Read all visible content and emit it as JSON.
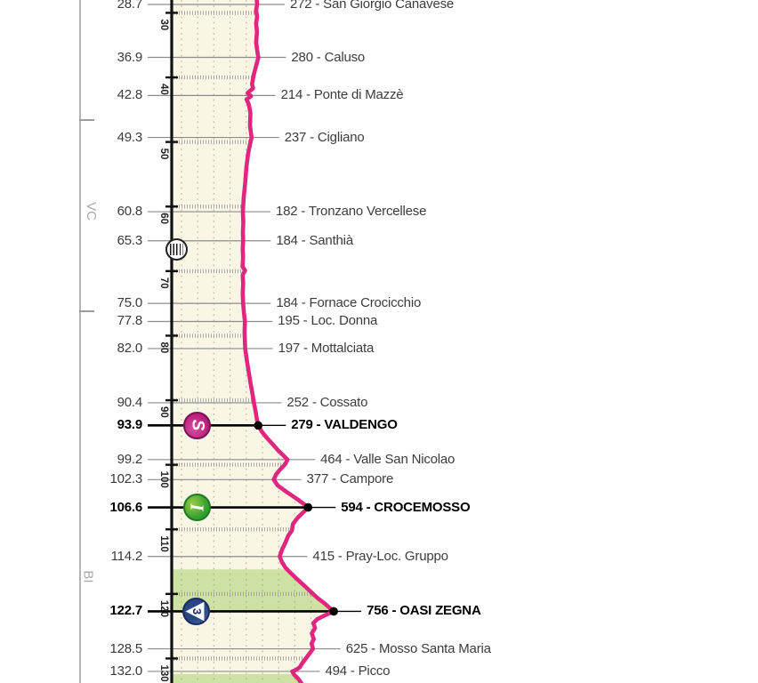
{
  "colors": {
    "route_pink": "#e0267e",
    "fill_cream": "#f9f6e6",
    "fill_climb_green": "#cde2a3",
    "axis_black": "#111111",
    "leader_gray": "#8c8c8c",
    "grid_dots": "#8f8a60",
    "hatch_gray": "#909090",
    "sprint_magenta": "#bb1f7c",
    "intergiro_green": "#3aa331",
    "gpm_navy": "#2a4584"
  },
  "chart_data": {
    "type": "line",
    "orientation": "vertical-route-profile",
    "distance_unit": "km",
    "altitude_unit": "m",
    "km_ticks": [
      30,
      40,
      50,
      60,
      70,
      80,
      90,
      100,
      110,
      120,
      130
    ],
    "waypoints": [
      {
        "km": 28.7,
        "km_label": "28.7",
        "alt": 272,
        "name": "San Giorgio Canavese",
        "bold": false
      },
      {
        "km": 36.9,
        "km_label": "36.9",
        "alt": 280,
        "name": "Caluso",
        "bold": false
      },
      {
        "km": 42.8,
        "km_label": "42.8",
        "alt": 214,
        "name": "Ponte di Mazzè",
        "bold": false
      },
      {
        "km": 49.3,
        "km_label": "49.3",
        "alt": 237,
        "name": "Cigliano",
        "bold": false
      },
      {
        "km": 60.8,
        "km_label": "60.8",
        "alt": 182,
        "name": "Tronzano Vercellese",
        "bold": false
      },
      {
        "km": 65.3,
        "km_label": "65.3",
        "alt": 184,
        "name": "Santhià",
        "bold": false
      },
      {
        "km": 75.0,
        "km_label": "75.0",
        "alt": 184,
        "name": "Fornace Crocicchio",
        "bold": false
      },
      {
        "km": 77.8,
        "km_label": "77.8",
        "alt": 195,
        "name": "Loc. Donna",
        "bold": false
      },
      {
        "km": 82.0,
        "km_label": "82.0",
        "alt": 197,
        "name": "Mottalciata",
        "bold": false
      },
      {
        "km": 90.4,
        "km_label": "90.4",
        "alt": 252,
        "name": "Cossato",
        "bold": false
      },
      {
        "km": 93.9,
        "km_label": "93.9",
        "alt": 279,
        "name": "VALDENGO",
        "bold": true
      },
      {
        "km": 99.2,
        "km_label": "99.2",
        "alt": 464,
        "name": "Valle San Nicolao",
        "bold": false
      },
      {
        "km": 102.3,
        "km_label": "102.3",
        "alt": 377,
        "name": "Campore",
        "bold": false
      },
      {
        "km": 106.6,
        "km_label": "106.6",
        "alt": 594,
        "name": "CROCEMOSSO",
        "bold": true
      },
      {
        "km": 114.2,
        "km_label": "114.2",
        "alt": 415,
        "name": "Pray-Loc. Gruppo",
        "bold": false
      },
      {
        "km": 122.7,
        "km_label": "122.7",
        "alt": 756,
        "name": "OASI ZEGNA",
        "bold": true
      },
      {
        "km": 128.5,
        "km_label": "128.5",
        "alt": 625,
        "name": "Mosso Santa Maria",
        "bold": false
      },
      {
        "km": 132.0,
        "km_label": "132.0",
        "alt": 494,
        "name": "Picco",
        "bold": false
      }
    ],
    "icons": [
      {
        "type": "sprint",
        "glyph": "S",
        "km": 93.9
      },
      {
        "type": "intergiro",
        "glyph": "I",
        "km": 106.6
      },
      {
        "type": "gpm-3",
        "glyph": "3",
        "km": 122.7
      },
      {
        "type": "feed-zone",
        "glyph": "",
        "km": 66.6
      }
    ],
    "climb_sections": [
      {
        "from_km": 116.2,
        "to_km": 122.7
      },
      {
        "from_km": 132.4,
        "to_km": 134.5
      }
    ],
    "provinces": {
      "labels": [
        {
          "text": "VC",
          "km": 61.0
        },
        {
          "text": "BI",
          "km": 117.6
        }
      ],
      "boundary_km": [
        46.6,
        76.2
      ]
    },
    "profile": [
      [
        27.9,
        270
      ],
      [
        28.7,
        272
      ],
      [
        29.6,
        266
      ],
      [
        30.6,
        272
      ],
      [
        31.6,
        266
      ],
      [
        33.0,
        271
      ],
      [
        34.6,
        266
      ],
      [
        36.0,
        274
      ],
      [
        36.9,
        280
      ],
      [
        38.0,
        268
      ],
      [
        39.5,
        252
      ],
      [
        41.0,
        240
      ],
      [
        41.7,
        246
      ],
      [
        42.4,
        212
      ],
      [
        42.9,
        234
      ],
      [
        43.4,
        205
      ],
      [
        44.2,
        220
      ],
      [
        45.5,
        230
      ],
      [
        47.5,
        227
      ],
      [
        49.3,
        237
      ],
      [
        50.5,
        226
      ],
      [
        52.0,
        214
      ],
      [
        54.0,
        204
      ],
      [
        56.5,
        196
      ],
      [
        58.5,
        188
      ],
      [
        60.8,
        182
      ],
      [
        62.5,
        185
      ],
      [
        64.0,
        182
      ],
      [
        65.3,
        184
      ],
      [
        66.5,
        181
      ],
      [
        68.0,
        183
      ],
      [
        69.3,
        180
      ],
      [
        69.9,
        196
      ],
      [
        70.6,
        181
      ],
      [
        72.0,
        184
      ],
      [
        73.5,
        181
      ],
      [
        75.0,
        184
      ],
      [
        76.5,
        189
      ],
      [
        77.8,
        195
      ],
      [
        79.5,
        193
      ],
      [
        82.0,
        197
      ],
      [
        83.5,
        205
      ],
      [
        85.0,
        215
      ],
      [
        86.5,
        225
      ],
      [
        88.0,
        235
      ],
      [
        89.5,
        246
      ],
      [
        90.4,
        252
      ],
      [
        91.5,
        261
      ],
      [
        93.0,
        271
      ],
      [
        93.9,
        279
      ],
      [
        94.8,
        300
      ],
      [
        95.8,
        332
      ],
      [
        96.8,
        370
      ],
      [
        97.8,
        406
      ],
      [
        98.6,
        440
      ],
      [
        99.2,
        464
      ],
      [
        99.9,
        450
      ],
      [
        100.7,
        418
      ],
      [
        101.5,
        392
      ],
      [
        102.3,
        377
      ],
      [
        103.2,
        402
      ],
      [
        104.2,
        458
      ],
      [
        105.2,
        518
      ],
      [
        106.0,
        564
      ],
      [
        106.6,
        594
      ],
      [
        107.3,
        566
      ],
      [
        108.2,
        528
      ],
      [
        109.2,
        498
      ],
      [
        110.2,
        492
      ],
      [
        111.0,
        468
      ],
      [
        112.0,
        452
      ],
      [
        113.1,
        430
      ],
      [
        114.2,
        415
      ],
      [
        115.0,
        428
      ],
      [
        115.9,
        450
      ],
      [
        116.6,
        478
      ],
      [
        117.6,
        520
      ],
      [
        118.6,
        565
      ],
      [
        119.6,
        608
      ],
      [
        120.6,
        652
      ],
      [
        121.5,
        700
      ],
      [
        122.2,
        732
      ],
      [
        122.7,
        756
      ],
      [
        123.3,
        702
      ],
      [
        123.9,
        652
      ],
      [
        124.5,
        628
      ],
      [
        125.3,
        638
      ],
      [
        126.1,
        618
      ],
      [
        127.0,
        630
      ],
      [
        127.7,
        616
      ],
      [
        128.5,
        625
      ],
      [
        129.3,
        601
      ],
      [
        130.0,
        580
      ],
      [
        130.7,
        558
      ],
      [
        131.4,
        540
      ],
      [
        131.8,
        515
      ],
      [
        132.0,
        494
      ],
      [
        132.5,
        506
      ],
      [
        133.1,
        530
      ],
      [
        133.7,
        548
      ],
      [
        134.2,
        560
      ]
    ]
  }
}
